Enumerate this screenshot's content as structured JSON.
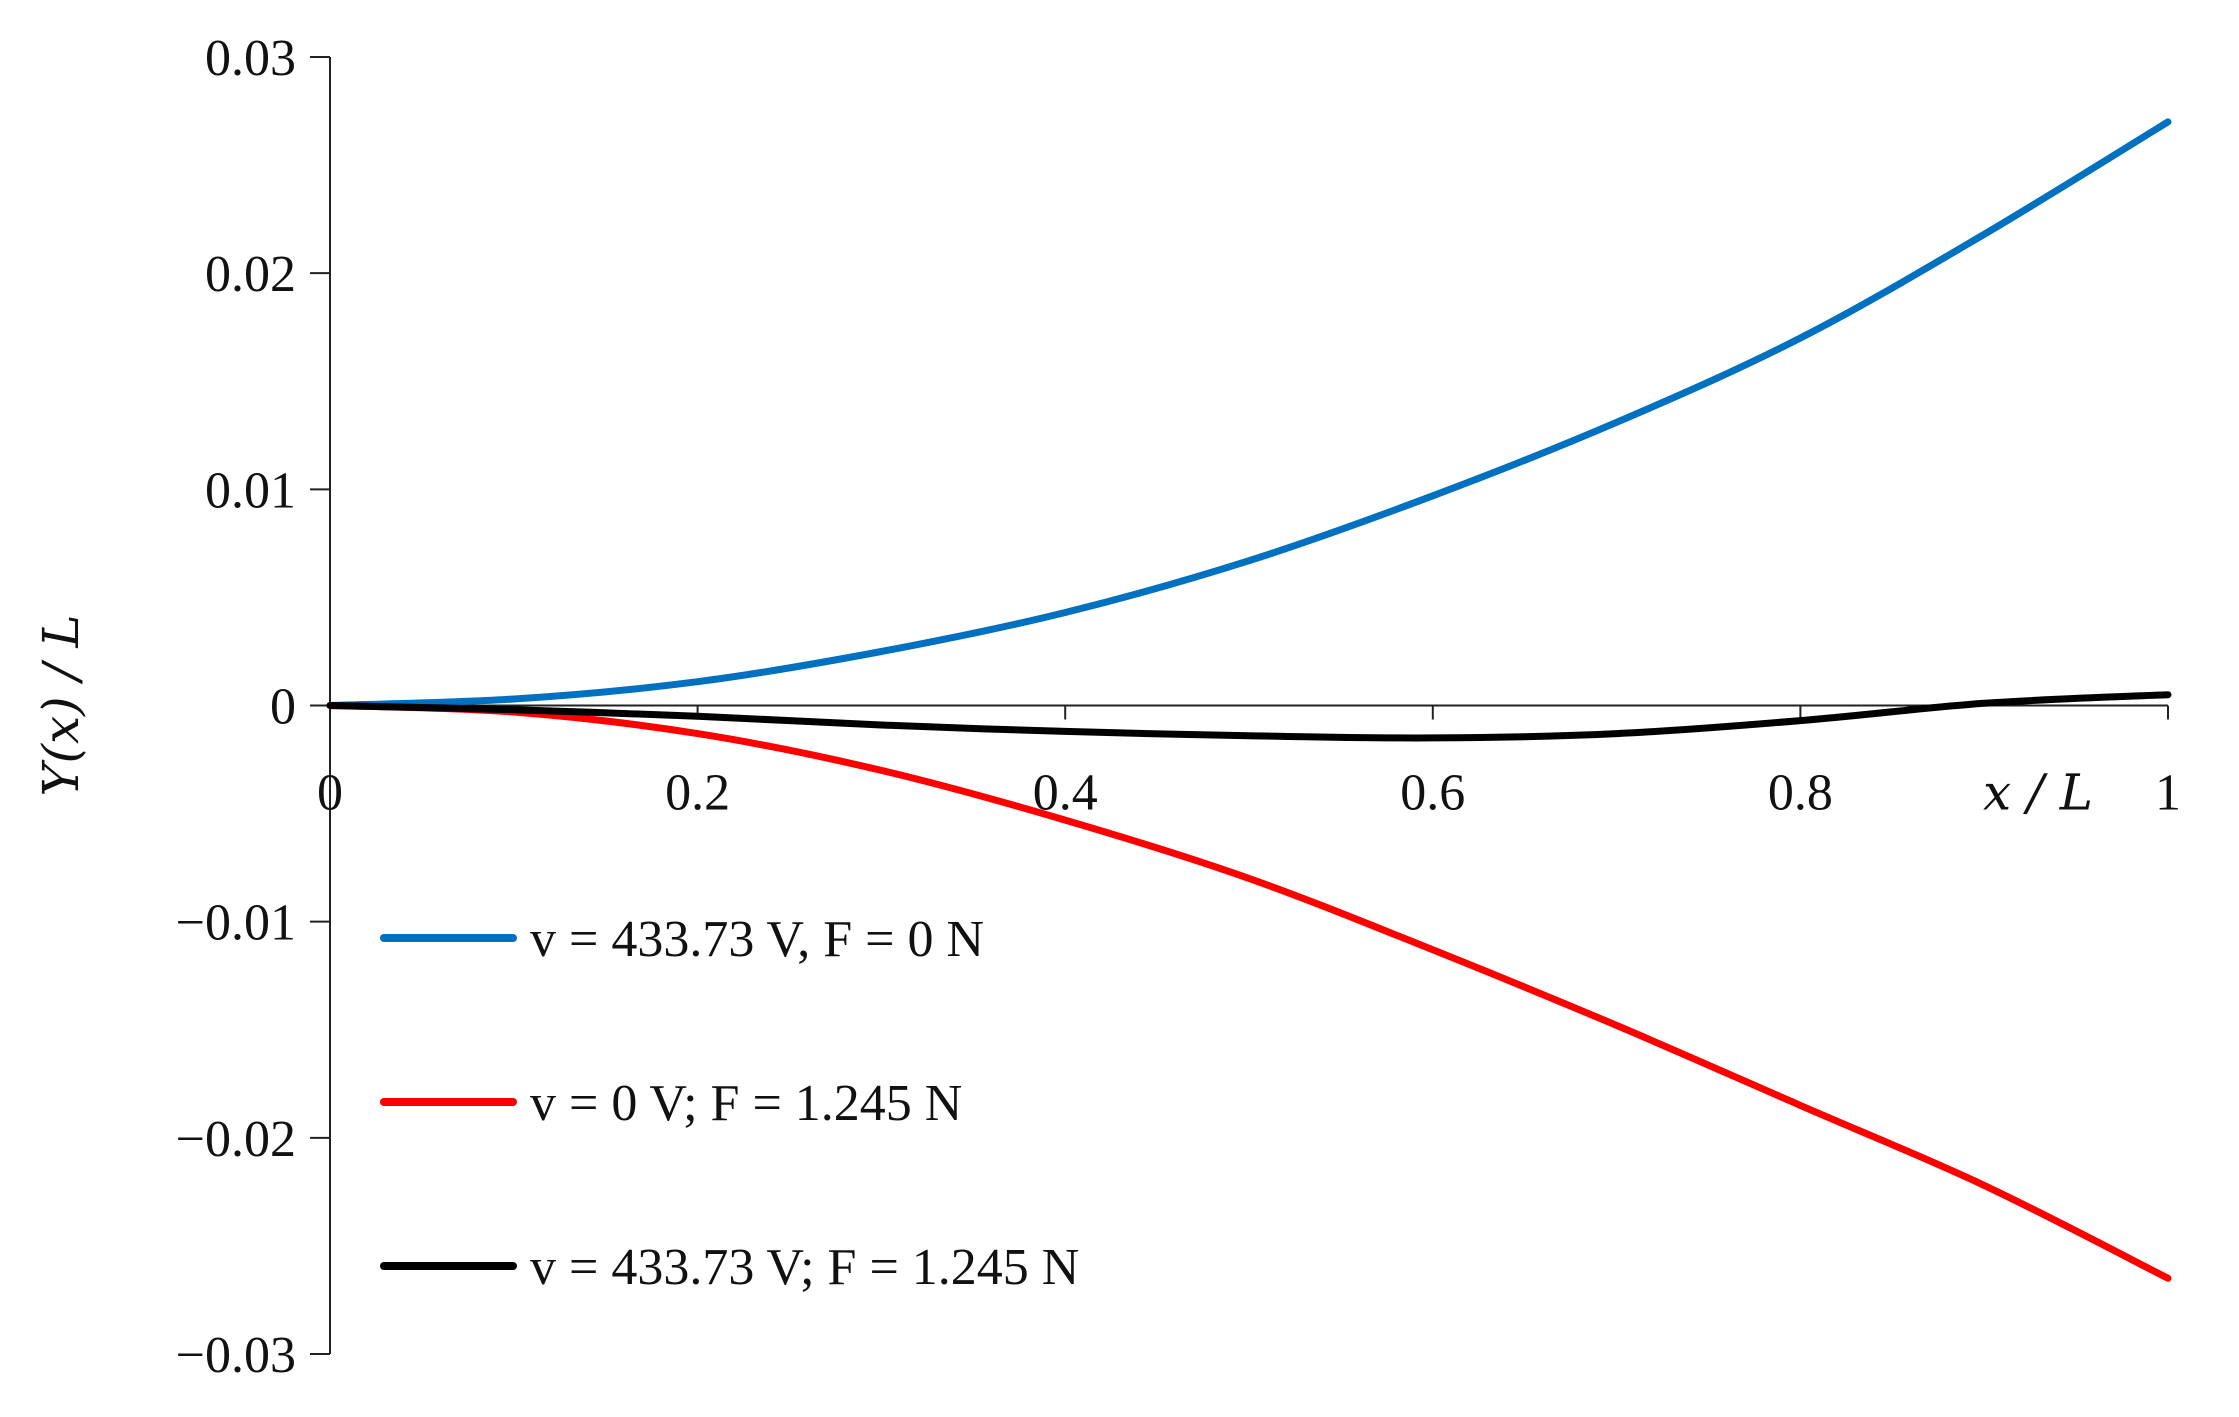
{
  "chart_data": {
    "type": "line",
    "xlabel": "x / L",
    "ylabel": "Y(x) / L",
    "xlim": [
      0,
      1
    ],
    "ylim": [
      -0.03,
      0.03
    ],
    "x_ticks": [
      {
        "value": 0,
        "label": "0"
      },
      {
        "value": 0.2,
        "label": "0.2"
      },
      {
        "value": 0.4,
        "label": "0.4"
      },
      {
        "value": 0.6,
        "label": "0.6"
      },
      {
        "value": 0.8,
        "label": "0.8"
      },
      {
        "value": 1,
        "label": "1"
      }
    ],
    "y_ticks": [
      {
        "value": 0.03,
        "label": "0.03"
      },
      {
        "value": 0.02,
        "label": "0.02"
      },
      {
        "value": 0.01,
        "label": "0.01"
      },
      {
        "value": 0,
        "label": "0"
      },
      {
        "value": -0.01,
        "label": "−0.01"
      },
      {
        "value": -0.02,
        "label": "−0.02"
      },
      {
        "value": -0.03,
        "label": "−0.03"
      }
    ],
    "grid": false,
    "legend_position": "lower-left",
    "series": [
      {
        "name": "v = 433.73 V, F = 0 N",
        "color": "#0070C0",
        "x": [
          0,
          0.1,
          0.2,
          0.3,
          0.4,
          0.5,
          0.6,
          0.7,
          0.8,
          0.9,
          1.0
        ],
        "y": [
          0,
          0.0003,
          0.0011,
          0.0025,
          0.0043,
          0.0067,
          0.0097,
          0.0131,
          0.017,
          0.0218,
          0.027
        ]
      },
      {
        "name": "v = 0 V; F = 1.245 N",
        "color": "#FF0000",
        "x": [
          0,
          0.1,
          0.2,
          0.3,
          0.4,
          0.5,
          0.6,
          0.7,
          0.8,
          0.9,
          1.0
        ],
        "y": [
          0,
          -0.0003,
          -0.0013,
          -0.003,
          -0.0053,
          -0.008,
          -0.0113,
          -0.0148,
          -0.0185,
          -0.0222,
          -0.0265
        ]
      },
      {
        "name": "v = 433.73 V; F = 1.245 N",
        "color": "#000000",
        "x": [
          0,
          0.1,
          0.2,
          0.3,
          0.4,
          0.5,
          0.6,
          0.7,
          0.8,
          0.9,
          1.0
        ],
        "y": [
          0,
          -0.0002,
          -0.0005,
          -0.0009,
          -0.0012,
          -0.0014,
          -0.0015,
          -0.0013,
          -0.0007,
          0.0001,
          0.0005
        ]
      }
    ]
  }
}
